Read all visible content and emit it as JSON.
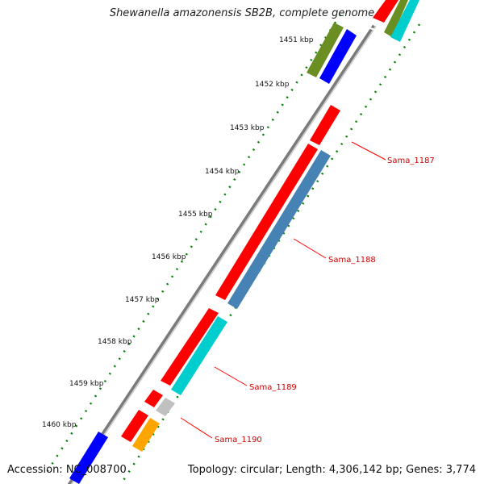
{
  "title": "Shewanella amazonensis SB2B, complete genome",
  "footer": {
    "accession": "Accession: NC_008700",
    "summary": "Topology: circular; Length: 4,306,142 bp; Genes: 3,774"
  },
  "ticks": [
    "1451 kbp",
    "1452 kbp",
    "1453 kbp",
    "1454 kbp",
    "1455 kbp",
    "1456 kbp",
    "1457 kbp",
    "1458 kbp",
    "1459 kbp",
    "1460 kbp"
  ],
  "gene_labels": [
    "Sama_1187",
    "Sama_1188",
    "Sama_1189",
    "Sama_1190"
  ],
  "colors": {
    "cds_red": "#ff0000",
    "blue": "#0000ff",
    "olive": "#6b8e23",
    "cyan": "#00cdcd",
    "steelblue": "#4682b4",
    "gray": "#c0c0c0",
    "orange": "#ffa500",
    "backbone": "#808080",
    "tick_green": "#008000",
    "label_red": "#cc0000"
  }
}
